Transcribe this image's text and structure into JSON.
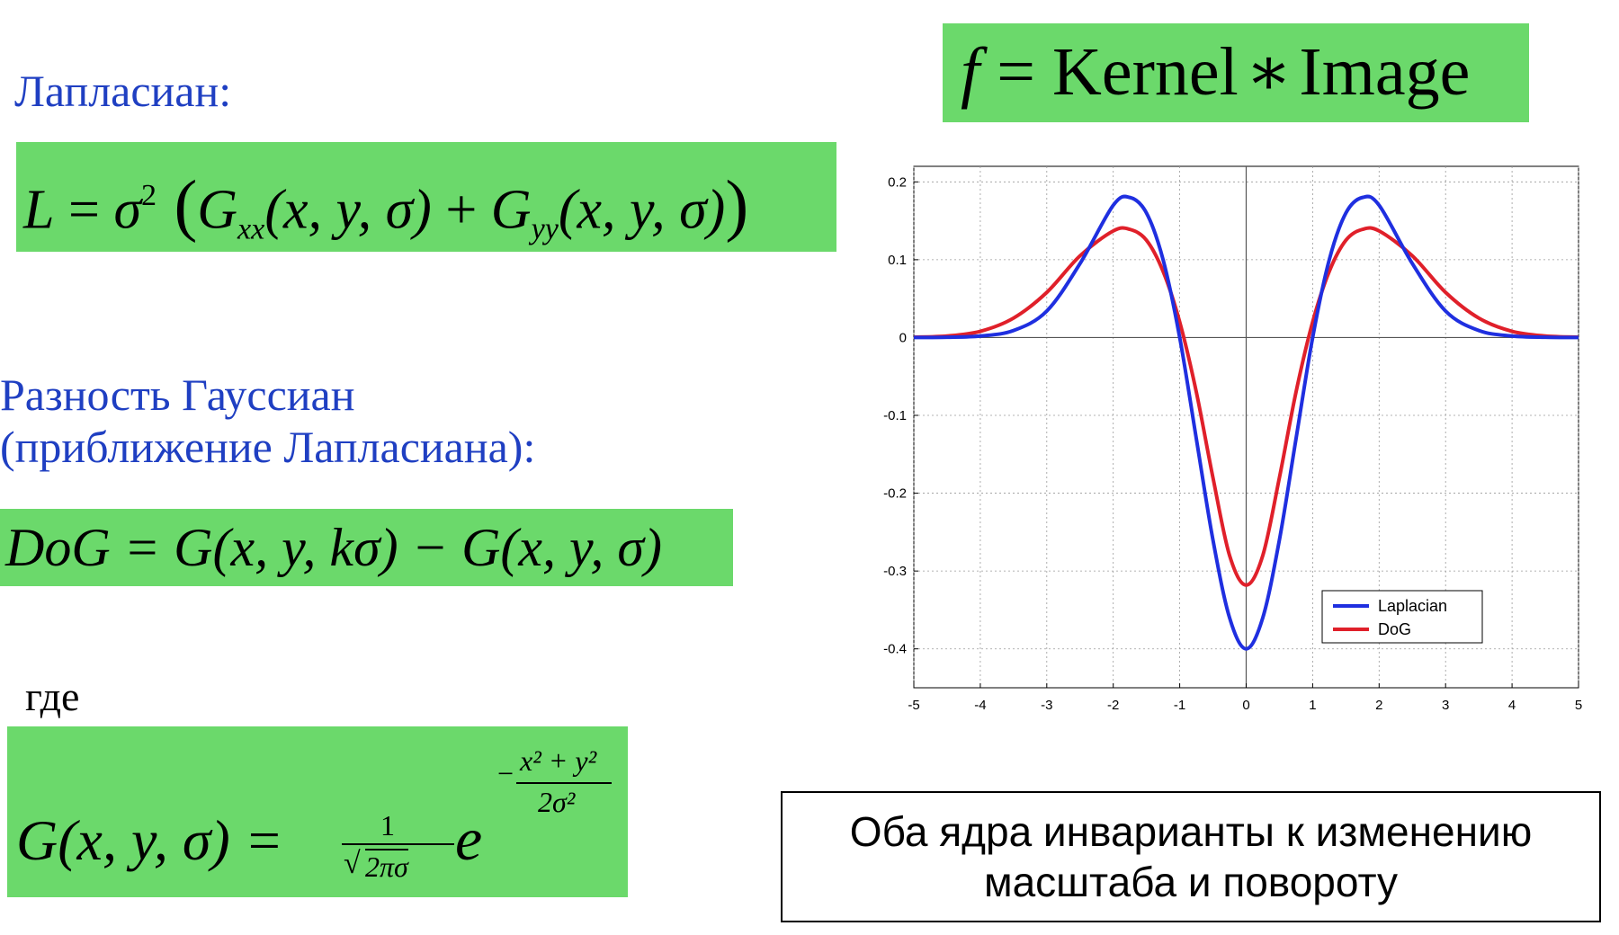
{
  "headings": {
    "laplacian": "Лапласиан:",
    "dog_line1": "Разность Гауссиан",
    "dog_line2": "(приближение Лапласиана):",
    "where": "где"
  },
  "formulas": {
    "kernel": {
      "f": "f",
      "eq": " = Kernel",
      "star": "∗",
      "image": "Image"
    },
    "laplacian": {
      "L": "L",
      "eq": " = ",
      "sigma": "σ",
      "sq": "2",
      "open": " (",
      "G1": "G",
      "s1": "xx",
      "a1": "(x, y, σ)",
      "plus": " + ",
      "G2": "G",
      "s2": "yy",
      "a2": "(x, y, σ)",
      "close": ")"
    },
    "dog": "DoG = G(x, y, kσ) − G(x, y, σ)",
    "gaussian": {
      "lhs": "G(x, y, σ) = ",
      "num": "1",
      "root": "√",
      "den": "2πσ",
      "e": "e",
      "minus": "−",
      "exp_num": "x² + y²",
      "exp_den": "2σ²"
    }
  },
  "note": {
    "line1": "Оба ядра инварианты к изменению",
    "line2": "масштаба и повороту"
  },
  "chart_data": {
    "type": "line",
    "title": "",
    "xlabel": "",
    "ylabel": "",
    "xlim": [
      -5,
      5
    ],
    "ylim": [
      -0.45,
      0.22
    ],
    "x_ticks": [
      -5,
      -4,
      -3,
      -2,
      -1,
      0,
      1,
      2,
      3,
      4,
      5
    ],
    "x_tick_labels": [
      "-5",
      "-4",
      "-3",
      "-2",
      "-1",
      "0",
      "1",
      "2",
      "3",
      "4",
      "5"
    ],
    "y_ticks": [
      0.2,
      0.1,
      0,
      -0.1,
      -0.2,
      -0.3,
      -0.4
    ],
    "y_tick_labels": [
      "0.2",
      "0.1",
      "0",
      "-0.1",
      "-0.2",
      "-0.3",
      "-0.4"
    ],
    "grid": true,
    "legend": "bottom-right",
    "x": [
      -5,
      -4.5,
      -4,
      -3.5,
      -3,
      -2.5,
      -2,
      -1.75,
      -1.5,
      -1.25,
      -1,
      -0.75,
      -0.5,
      -0.25,
      0,
      0.25,
      0.5,
      0.75,
      1,
      1.25,
      1.5,
      1.75,
      2,
      2.5,
      3,
      3.5,
      4,
      4.5,
      5
    ],
    "series": [
      {
        "name": "Laplacian",
        "color": "#1f2fe0",
        "values": [
          0.0001,
          0.0004,
          0.002,
          0.009,
          0.034,
          0.095,
          0.17,
          0.18,
          0.16,
          0.1,
          0.0,
          -0.13,
          -0.26,
          -0.36,
          -0.4,
          -0.36,
          -0.26,
          -0.13,
          0.0,
          0.1,
          0.16,
          0.18,
          0.17,
          0.095,
          0.034,
          0.009,
          0.002,
          0.0004,
          0.0001
        ]
      },
      {
        "name": "DoG",
        "color": "#e0202a",
        "values": [
          0.0005,
          0.002,
          0.008,
          0.025,
          0.058,
          0.105,
          0.137,
          0.139,
          0.125,
          0.085,
          0.02,
          -0.07,
          -0.18,
          -0.28,
          -0.318,
          -0.28,
          -0.18,
          -0.07,
          0.02,
          0.085,
          0.125,
          0.139,
          0.137,
          0.105,
          0.058,
          0.025,
          0.008,
          0.002,
          0.0005
        ]
      }
    ]
  }
}
